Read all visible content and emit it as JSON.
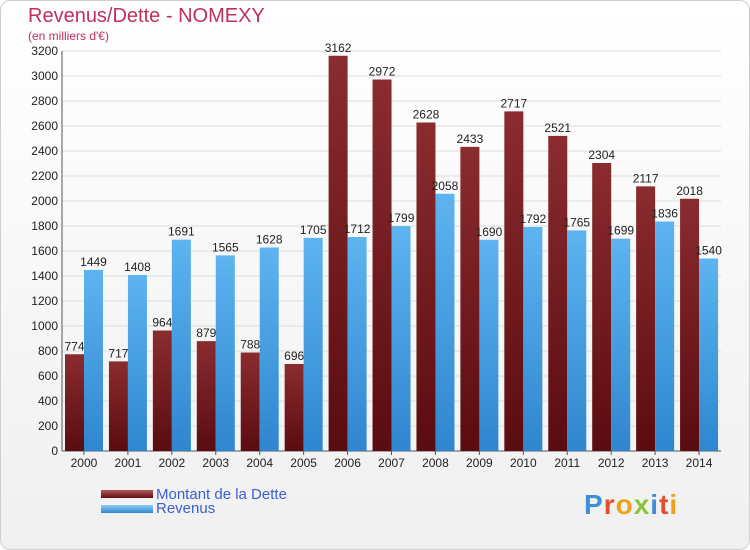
{
  "header": {
    "title": "Revenus/Dette - NOMEXY",
    "subtitle": "(en milliers d'€)"
  },
  "legend": {
    "debt_label": "Montant de la Dette",
    "revenue_label": "Revenus"
  },
  "logo": {
    "text": "Proxiti"
  },
  "colors": {
    "debt": "#7a1f22",
    "revenue": "#4aa3e6",
    "title": "#c0305a",
    "legend_text": "#3a5fd0"
  },
  "chart_data": {
    "type": "bar",
    "title": "Revenus/Dette - NOMEXY",
    "ylim": [
      0,
      3200
    ],
    "yticks": [
      0,
      200,
      400,
      600,
      800,
      1000,
      1200,
      1400,
      1600,
      1800,
      2000,
      2200,
      2400,
      2600,
      2800,
      3000,
      3200
    ],
    "categories": [
      "2000",
      "2001",
      "2002",
      "2003",
      "2004",
      "2005",
      "2006",
      "2007",
      "2008",
      "2009",
      "2010",
      "2011",
      "2012",
      "2013",
      "2014"
    ],
    "series": [
      {
        "name": "Montant de la Dette",
        "values": [
          774,
          717,
          964,
          879,
          788,
          696,
          3162,
          2972,
          2628,
          2433,
          2717,
          2521,
          2304,
          2117,
          2018
        ]
      },
      {
        "name": "Revenus",
        "values": [
          1449,
          1408,
          1691,
          1565,
          1628,
          1705,
          1712,
          1799,
          2058,
          1690,
          1792,
          1765,
          1699,
          1836,
          1540
        ]
      }
    ]
  }
}
